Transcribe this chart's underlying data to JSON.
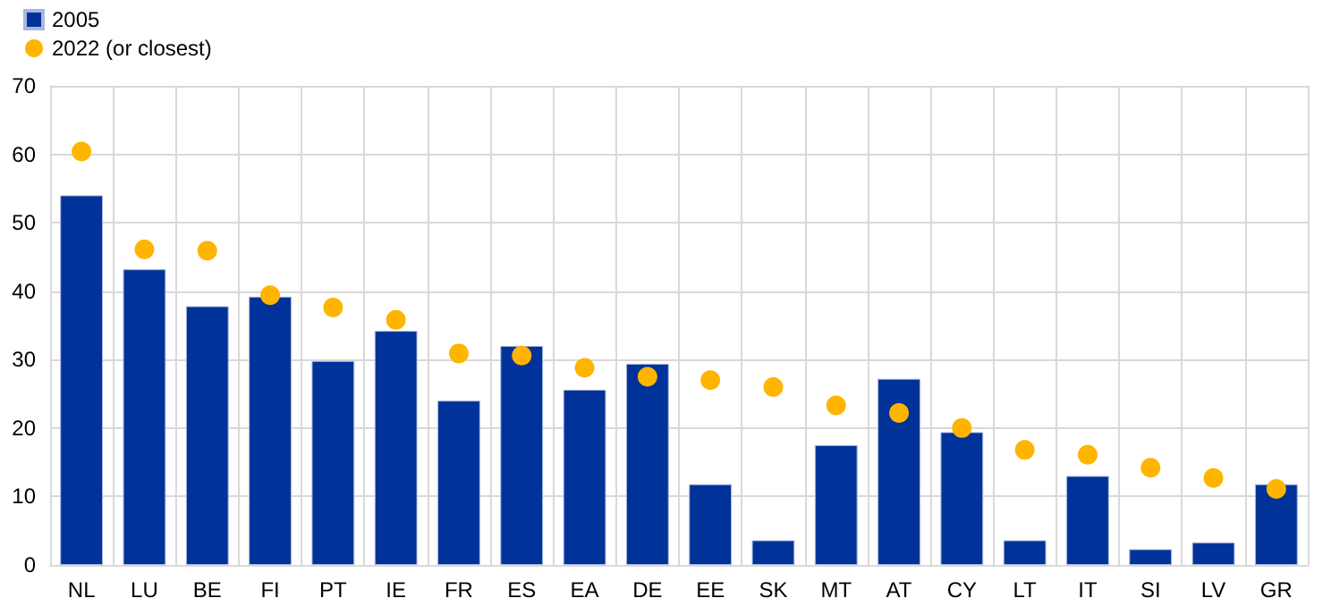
{
  "chart_data": {
    "type": "bar",
    "categories": [
      "NL",
      "LU",
      "BE",
      "FI",
      "PT",
      "IE",
      "FR",
      "ES",
      "EA",
      "DE",
      "EE",
      "SK",
      "MT",
      "AT",
      "CY",
      "LT",
      "IT",
      "SI",
      "LV",
      "GR"
    ],
    "series": [
      {
        "name": "2005",
        "color": "#003299",
        "values": [
          54,
          43.2,
          37.8,
          39.2,
          29.8,
          34.2,
          24,
          32,
          25.6,
          29.4,
          11.8,
          3.6,
          17.5,
          27.2,
          19.4,
          3.6,
          13,
          2.3,
          3.3,
          11.8
        ]
      },
      {
        "name": "2022 (or closest)",
        "type": "scatter",
        "color": "#ffb400",
        "marker": "circle",
        "values": [
          60.4,
          46.1,
          45.9,
          39.4,
          37.6,
          35.8,
          30.9,
          30.6,
          28.8,
          27.5,
          27,
          26,
          23.3,
          22.2,
          20,
          16.8,
          16.1,
          14.2,
          12.7,
          11.1
        ]
      }
    ],
    "ylim": [
      0,
      70
    ],
    "yticks": [
      0,
      10,
      20,
      30,
      40,
      50,
      60,
      70
    ],
    "grid": true,
    "legend": "top left"
  }
}
